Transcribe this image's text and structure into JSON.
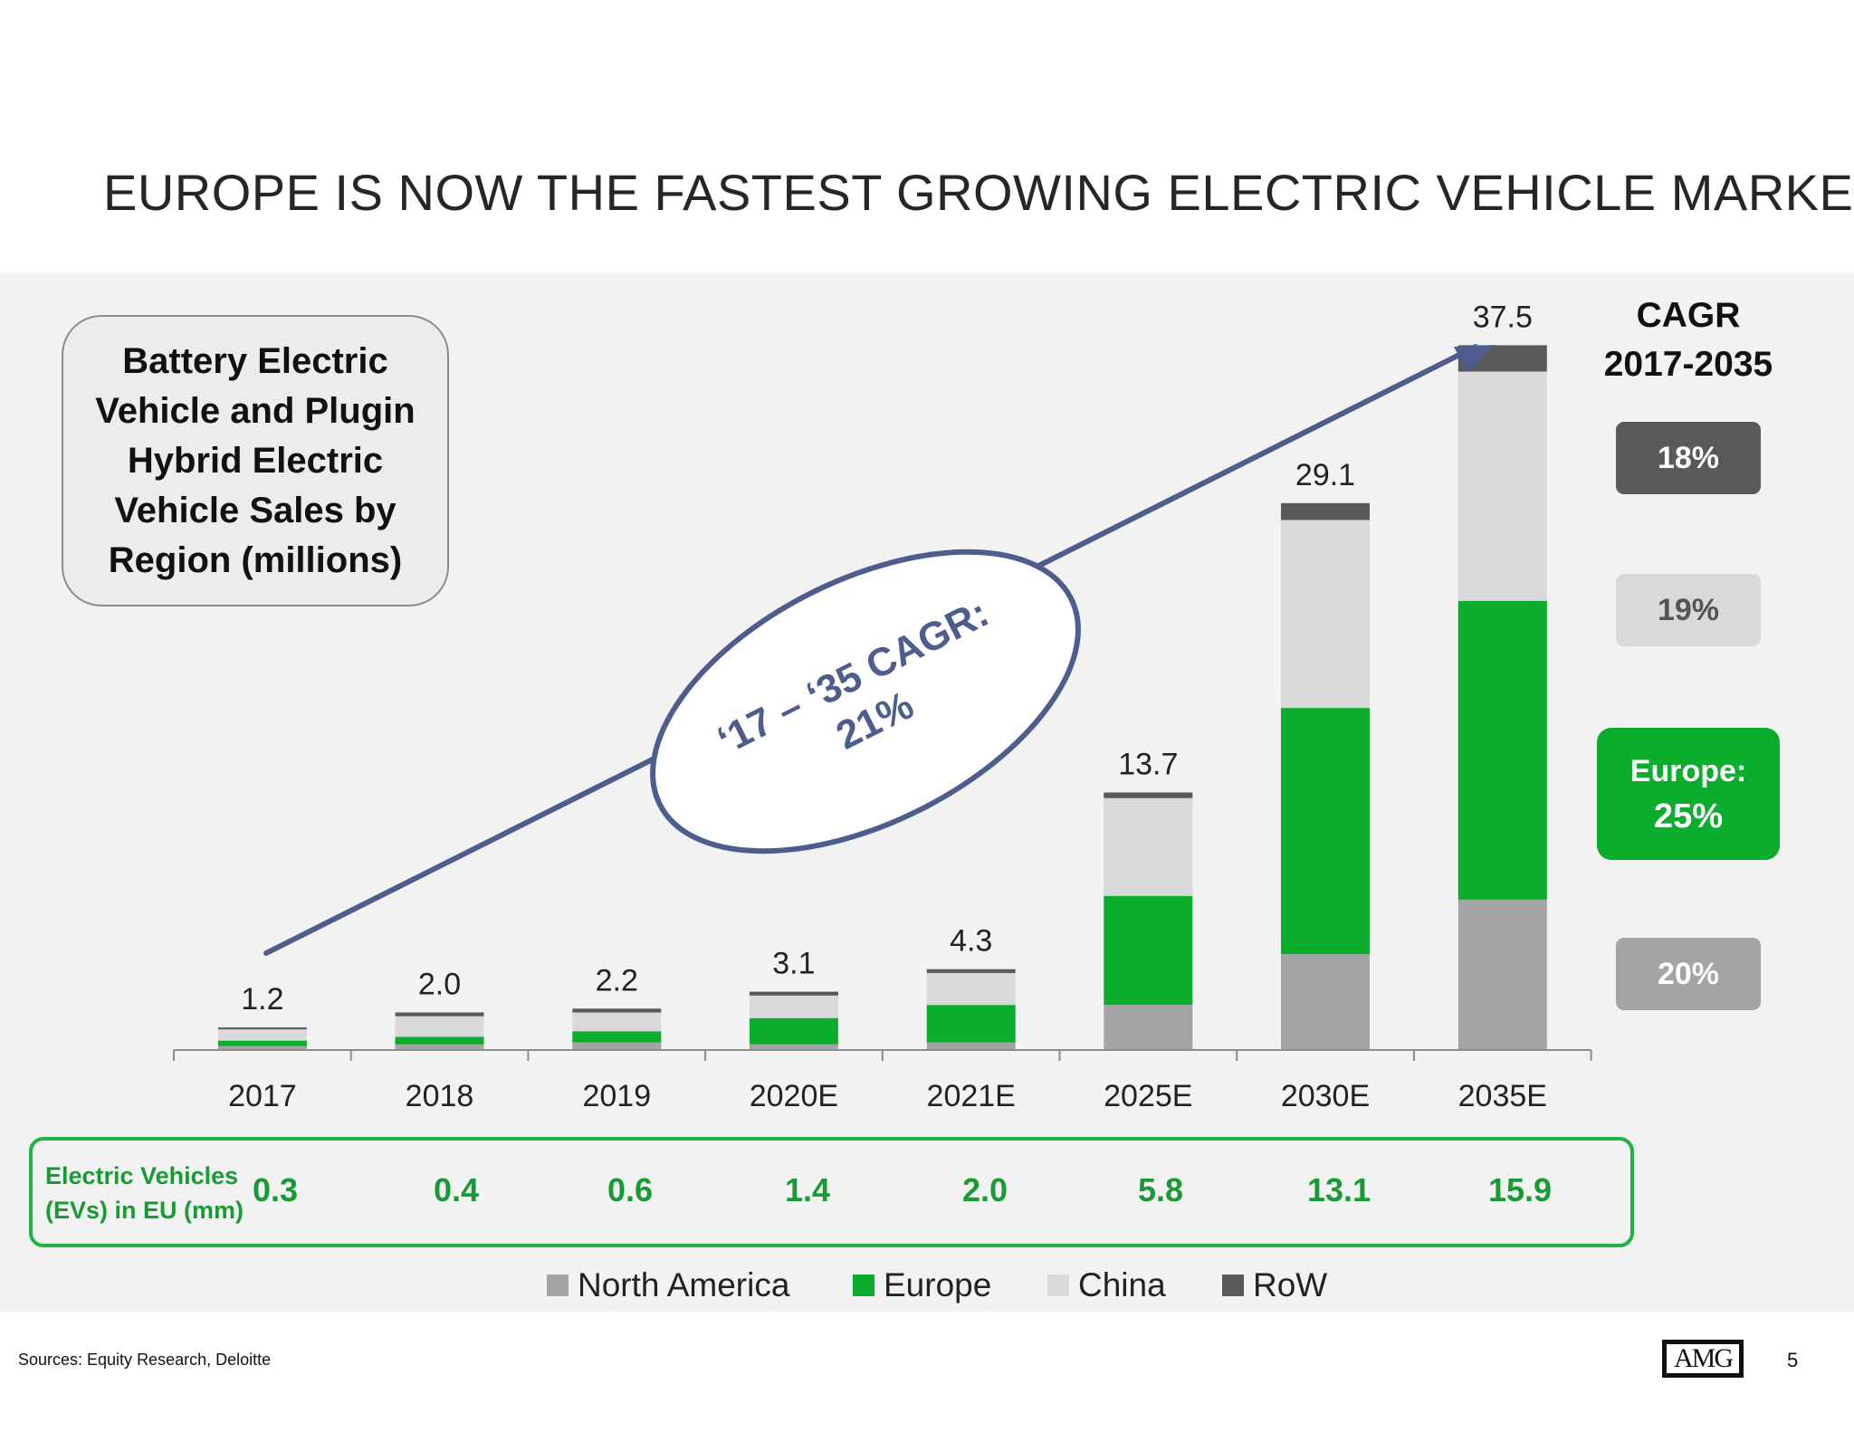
{
  "title": "EUROPE IS NOW THE FASTEST GROWING ELECTRIC VEHICLE MARKET",
  "info_box": {
    "lines": [
      "Battery Electric",
      "Vehicle and Plugin",
      "Hybrid Electric",
      "Vehicle Sales by",
      "Region (millions)"
    ]
  },
  "cagr_heading": [
    "CAGR",
    "2017-2035"
  ],
  "cagr_badges": [
    {
      "lines": [
        "18%"
      ],
      "color": "#59585a"
    },
    {
      "lines": [
        "19%"
      ],
      "color": "#d9d9dc",
      "text_color": "#555555"
    },
    {
      "lines": [
        "Europe:",
        "25%"
      ],
      "color": "#0aad2c"
    },
    {
      "lines": [
        "20%"
      ],
      "color": "#a4a3a6"
    }
  ],
  "arrow_callout": {
    "line1": "‘17 – ‘35 CAGR:",
    "line2": "21%",
    "color": "#4e5d8e"
  },
  "chart_data": {
    "type": "bar",
    "stacked": true,
    "categories": [
      "2017",
      "2018",
      "2019",
      "2020E",
      "2021E",
      "2025E",
      "2030E",
      "2035E"
    ],
    "totals": [
      "1.2",
      "2.0",
      "2.2",
      "3.1",
      "4.3",
      "13.7",
      "29.1",
      "37.5"
    ],
    "series": [
      {
        "name": "North America",
        "color": "#a4a3a6",
        "values": [
          0.2,
          0.3,
          0.4,
          0.3,
          0.4,
          2.4,
          5.1,
          8.0
        ]
      },
      {
        "name": "Europe",
        "color": "#0aad2c",
        "values": [
          0.3,
          0.4,
          0.6,
          1.4,
          2.0,
          5.8,
          13.1,
          15.9
        ]
      },
      {
        "name": "China",
        "color": "#d9d9dc",
        "values": [
          0.6,
          1.1,
          1.0,
          1.2,
          1.7,
          5.2,
          10.0,
          12.2
        ]
      },
      {
        "name": "RoW",
        "color": "#59585a",
        "values": [
          0.1,
          0.2,
          0.2,
          0.2,
          0.2,
          0.3,
          0.9,
          1.4
        ]
      }
    ],
    "ylim": [
      0,
      38
    ],
    "grid": false,
    "legend": "bottom"
  },
  "ev_row": {
    "label_lines": [
      "Electric Vehicles",
      "(EVs) in EU (mm)"
    ],
    "values": [
      "0.3",
      "0.4",
      "0.6",
      "1.4",
      "2.0",
      "5.8",
      "13.1",
      "15.9"
    ]
  },
  "footer": {
    "source": "Sources: Equity Research, Deloitte",
    "logo_text": "AMG",
    "page_number": "5"
  }
}
